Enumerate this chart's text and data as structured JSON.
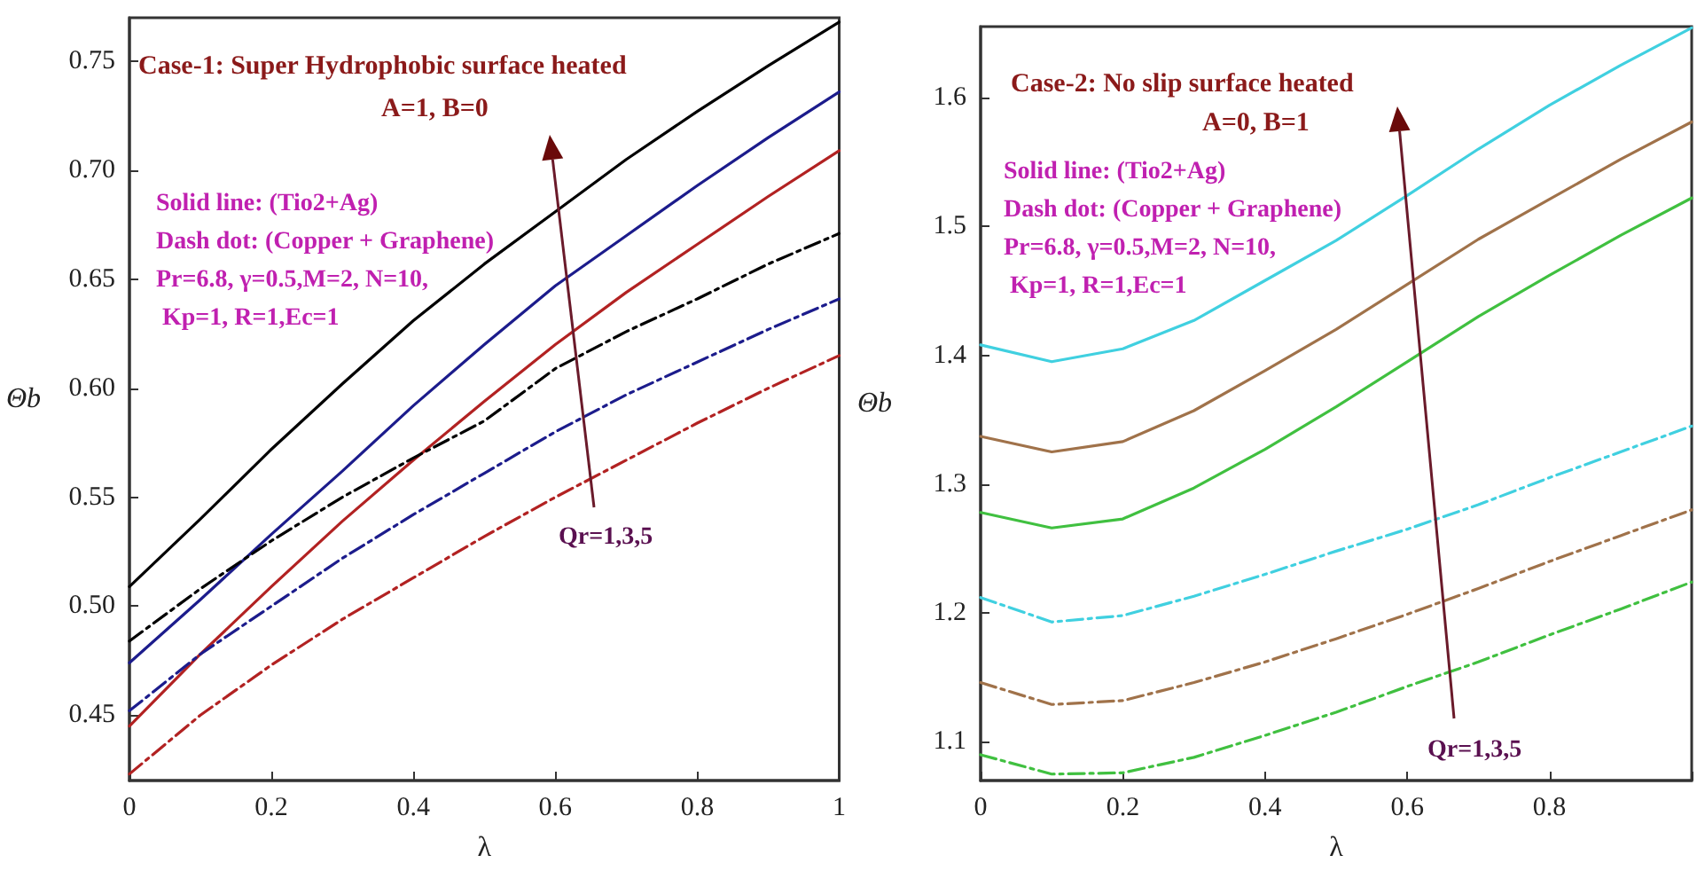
{
  "chart_data": [
    {
      "type": "line",
      "title": "Case-1: Super Hydrophobic surface heated",
      "subtitle": "A=1, B=0",
      "xlabel": "λ",
      "ylabel": "Θb",
      "annotations": [
        "Solid line: (Tio2+Ag)",
        "Dash dot: (Copper + Graphene)",
        "Pr=6.8, γ=0.5,M=2, N=10,",
        " Kp=1, R=1,Ec=1",
        "Qr=1,3,5"
      ],
      "x": [
        0,
        0.1,
        0.2,
        0.3,
        0.4,
        0.5,
        0.6,
        0.7,
        0.8,
        0.9,
        1
      ],
      "xlim": [
        0,
        1
      ],
      "xticks": [
        0,
        0.2,
        0.4,
        0.6,
        0.8,
        1
      ],
      "ylim": [
        0.42,
        0.77
      ],
      "yticks": [
        0.45,
        {
          "value": 0.5,
          "label": "0.50"
        },
        0.55,
        {
          "value": 0.6,
          "label": "0.60"
        },
        0.65,
        {
          "value": 0.7,
          "label": "0.70"
        },
        0.75
      ],
      "marker": "none",
      "series": [
        {
          "color": "#000000",
          "line_style": "solid",
          "values": [
            0.509,
            0.54,
            0.572,
            0.602,
            0.631,
            0.657,
            0.681,
            0.705,
            0.727,
            0.748,
            0.768
          ]
        },
        {
          "color": "#1c1c8c",
          "line_style": "solid",
          "values": [
            0.474,
            0.503,
            0.533,
            0.562,
            0.592,
            0.62,
            0.647,
            0.67,
            0.693,
            0.715,
            0.736
          ]
        },
        {
          "color": "#b22222",
          "line_style": "solid",
          "values": [
            0.445,
            0.478,
            0.509,
            0.539,
            0.567,
            0.594,
            0.62,
            0.644,
            0.666,
            0.688,
            0.709
          ]
        },
        {
          "color": "#000000",
          "line_style": "dashed",
          "values": [
            0.484,
            0.508,
            0.53,
            0.55,
            0.568,
            0.585,
            0.609,
            0.626,
            0.641,
            0.657,
            0.671
          ]
        },
        {
          "color": "#1c1c8c",
          "line_style": "dashed",
          "values": [
            0.452,
            0.478,
            0.5,
            0.522,
            0.542,
            0.561,
            0.58,
            0.597,
            0.612,
            0.627,
            0.641
          ]
        },
        {
          "color": "#b22222",
          "line_style": "dashed",
          "values": [
            0.423,
            0.45,
            0.473,
            0.494,
            0.513,
            0.532,
            0.55,
            0.567,
            0.584,
            0.6,
            0.615
          ]
        }
      ]
    },
    {
      "type": "line",
      "title": "Case-2: No slip surface heated",
      "subtitle": "A=0, B=1",
      "xlabel": "λ",
      "ylabel": "Θb",
      "annotations": [
        "Solid line: (Tio2+Ag)",
        "Dash dot: (Copper + Graphene)",
        "Pr=6.8, γ=0.5,M=2, N=10,",
        " Kp=1, R=1,Ec=1",
        "Qr=1,3,5"
      ],
      "x": [
        0,
        0.1,
        0.2,
        0.3,
        0.4,
        0.5,
        0.6,
        0.7,
        0.8,
        0.9,
        1
      ],
      "xlim": [
        0,
        1
      ],
      "xticks": [
        0,
        0.2,
        0.4,
        0.6,
        0.8,
        {
          "value": 1,
          "label": null
        }
      ],
      "ylim": [
        1.07,
        1.655
      ],
      "yticks": [
        1.1,
        1.2,
        1.3,
        1.4,
        1.5,
        1.6
      ],
      "marker": "none",
      "series": [
        {
          "color": "#40d0e0",
          "line_style": "solid",
          "values": [
            1.408,
            1.395,
            1.405,
            1.427,
            1.458,
            1.489,
            1.524,
            1.56,
            1.594,
            1.625,
            1.654
          ]
        },
        {
          "color": "#a0724a",
          "line_style": "solid",
          "values": [
            1.337,
            1.325,
            1.333,
            1.357,
            1.388,
            1.42,
            1.455,
            1.49,
            1.521,
            1.552,
            1.581
          ]
        },
        {
          "color": "#40c040",
          "line_style": "solid",
          "values": [
            1.278,
            1.266,
            1.273,
            1.297,
            1.327,
            1.36,
            1.395,
            1.43,
            1.462,
            1.493,
            1.522
          ]
        },
        {
          "color": "#40d0e0",
          "line_style": "dashed",
          "values": [
            1.212,
            1.193,
            1.198,
            1.213,
            1.23,
            1.248,
            1.265,
            1.284,
            1.305,
            1.325,
            1.345
          ]
        },
        {
          "color": "#a0724a",
          "line_style": "dashed",
          "values": [
            1.146,
            1.129,
            1.132,
            1.146,
            1.162,
            1.18,
            1.199,
            1.219,
            1.24,
            1.26,
            1.28
          ]
        },
        {
          "color": "#40c040",
          "line_style": "dashed",
          "values": [
            1.09,
            1.075,
            1.076,
            1.088,
            1.105,
            1.123,
            1.143,
            1.162,
            1.183,
            1.203,
            1.224
          ]
        }
      ]
    }
  ]
}
